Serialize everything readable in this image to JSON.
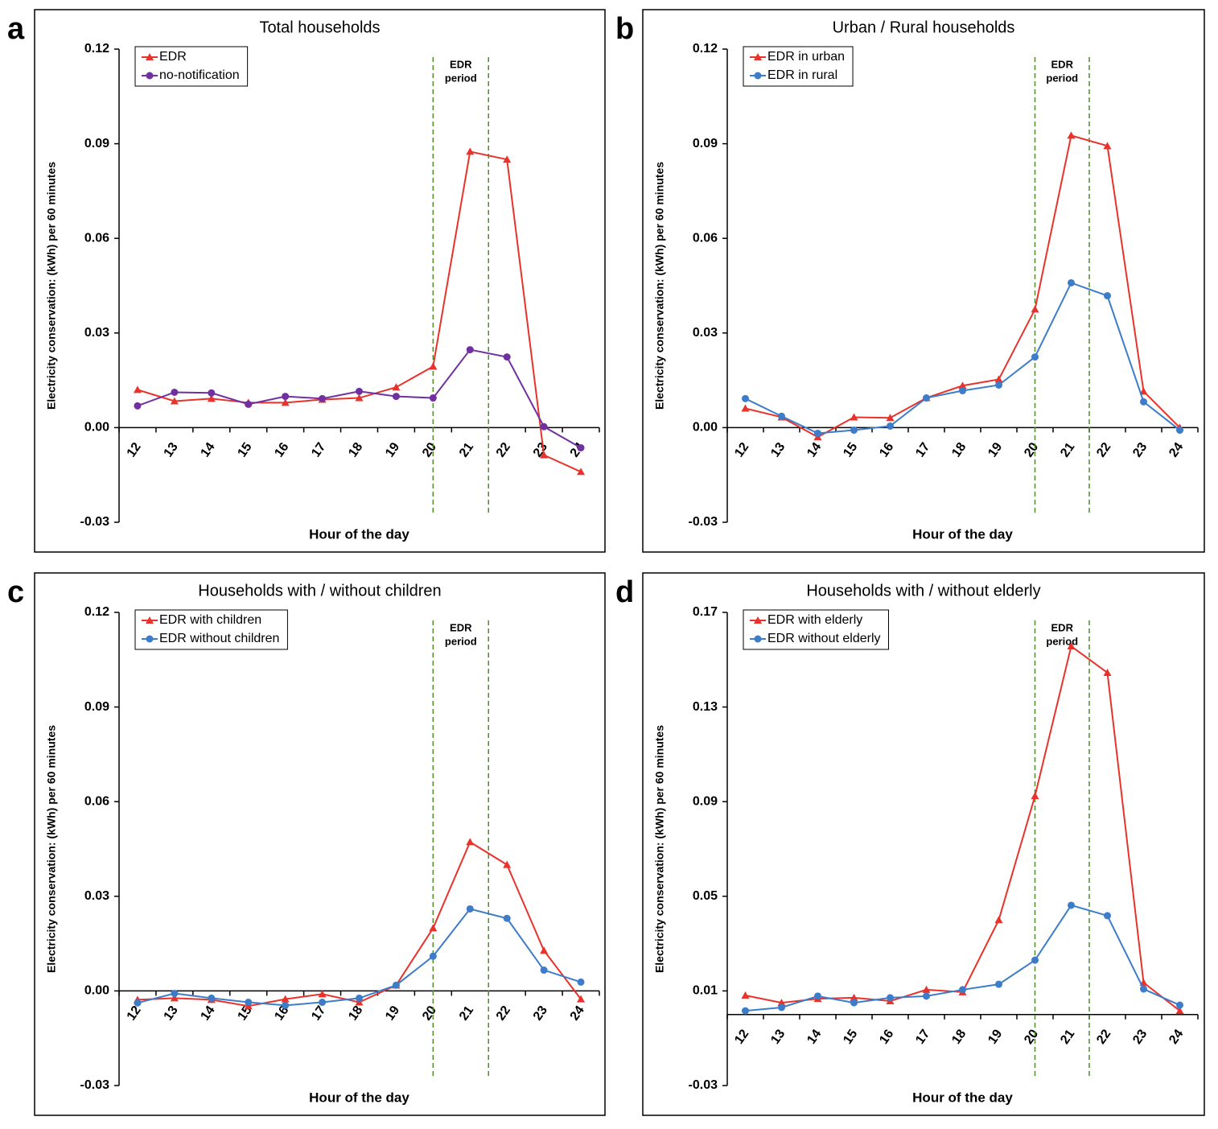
{
  "chart_data": [
    {
      "type": "line",
      "panel_label": "a",
      "title": "Total households",
      "x_label": "Hour of the day",
      "y_label": "Electricity conservation: (kWh) per 60 minutes",
      "annotation": [
        "EDR",
        "period"
      ],
      "categories": [
        "12",
        "13",
        "14",
        "15",
        "16",
        "17",
        "18",
        "19",
        "20",
        "21",
        "22",
        "23",
        "24"
      ],
      "series": [
        {
          "name": "EDR",
          "color": "#e8322b",
          "marker": "triangle",
          "values": [
            0.012,
            0.0084,
            0.0092,
            0.0079,
            0.0079,
            0.0089,
            0.0094,
            0.0128,
            0.0194,
            0.0875,
            0.085,
            -0.0087,
            -0.014
          ]
        },
        {
          "name": "no-notification",
          "color": "#7030a0",
          "marker": "circle",
          "values": [
            0.0069,
            0.0112,
            0.011,
            0.0074,
            0.0099,
            0.0092,
            0.0115,
            0.0099,
            0.0094,
            0.0247,
            0.0224,
            0.0003,
            -0.0064
          ]
        }
      ],
      "ylim": [
        -0.03,
        0.12
      ],
      "yticks": [
        -0.03,
        {
          "value": 0,
          "label": "0.00"
        },
        0.03,
        0.06,
        0.09,
        0.12
      ],
      "legend": "upper left",
      "grid": false
    },
    {
      "type": "line",
      "panel_label": "b",
      "title": "Urban / Rural households",
      "x_label": "Hour of the day",
      "y_label": "Electricity conservation: (kWh) per 60 minutes",
      "annotation": [
        "EDR",
        "period"
      ],
      "categories": [
        "12",
        "13",
        "14",
        "15",
        "16",
        "17",
        "18",
        "19",
        "20",
        "21",
        "22",
        "23",
        "24"
      ],
      "series": [
        {
          "name": "EDR in urban",
          "color": "#e8322b",
          "marker": "triangle",
          "values": [
            0.0061,
            0.0033,
            -0.003,
            0.0033,
            0.0031,
            0.0094,
            0.0133,
            0.0153,
            0.0375,
            0.0926,
            0.0893,
            0.0115,
            0
          ]
        },
        {
          "name": "EDR in rural",
          "color": "#3d7cc9",
          "marker": "circle",
          "values": [
            0.0092,
            0.0036,
            -0.0018,
            -0.0008,
            0.0005,
            0.0094,
            0.0117,
            0.0135,
            0.0224,
            0.0459,
            0.0418,
            0.0082,
            -0.0008
          ]
        }
      ],
      "ylim": [
        -0.03,
        0.12
      ],
      "yticks": [
        -0.03,
        {
          "value": 0,
          "label": "0.00"
        },
        0.03,
        0.06,
        0.09,
        0.12
      ],
      "legend": "upper left",
      "grid": false
    },
    {
      "type": "line",
      "panel_label": "c",
      "title": "Households with / without children",
      "x_label": "Hour of the day",
      "y_label": "Electricity conservation: (kWh) per 60 minutes",
      "annotation": [
        "EDR",
        "period"
      ],
      "categories": [
        "12",
        "13",
        "14",
        "15",
        "16",
        "17",
        "18",
        "19",
        "20",
        "21",
        "22",
        "23",
        "24"
      ],
      "series": [
        {
          "name": "EDR with children",
          "color": "#e8322b",
          "marker": "triangle",
          "values": [
            -0.0028,
            -0.0023,
            -0.0028,
            -0.0048,
            -0.0026,
            -0.001,
            -0.0036,
            0.0018,
            0.0199,
            0.0472,
            0.04,
            0.0128,
            -0.0026
          ]
        },
        {
          "name": "EDR without children",
          "color": "#3d7cc9",
          "marker": "circle",
          "values": [
            -0.0038,
            -0.0008,
            -0.0023,
            -0.0036,
            -0.0046,
            -0.0036,
            -0.0023,
            0.0018,
            0.011,
            0.026,
            0.023,
            0.0066,
            0.0028
          ]
        }
      ],
      "ylim": [
        -0.03,
        0.12
      ],
      "yticks": [
        -0.03,
        {
          "value": 0,
          "label": "0.00"
        },
        0.03,
        0.06,
        0.09,
        0.12
      ],
      "legend": "upper left",
      "grid": false
    },
    {
      "type": "line",
      "panel_label": "d",
      "title": "Households with / without elderly",
      "x_label": "Hour of the day",
      "y_label": "Electricity conservation: (kWh) per 60 minutes",
      "annotation": [
        "EDR",
        "period"
      ],
      "categories": [
        "12",
        "13",
        "14",
        "15",
        "16",
        "17",
        "18",
        "19",
        "20",
        "21",
        "22",
        "23",
        "24"
      ],
      "series": [
        {
          "name": "EDR with elderly",
          "color": "#e8322b",
          "marker": "triangle",
          "values": [
            0.0081,
            0.005,
            0.0067,
            0.0071,
            0.0057,
            0.0105,
            0.0095,
            0.04,
            0.0924,
            0.1557,
            0.1445,
            0.0135,
            0.0016
          ]
        },
        {
          "name": "EDR without elderly",
          "color": "#3d7cc9",
          "marker": "circle",
          "values": [
            0.0016,
            0.003,
            0.0078,
            0.005,
            0.0071,
            0.0078,
            0.0105,
            0.0128,
            0.023,
            0.0462,
            0.0418,
            0.0108,
            0.004
          ]
        }
      ],
      "ylim": [
        -0.03,
        0.17
      ],
      "yticks": [
        -0.03,
        0.01,
        0.05,
        0.09,
        0.13,
        0.17
      ],
      "legend": "upper left",
      "grid": false
    }
  ]
}
